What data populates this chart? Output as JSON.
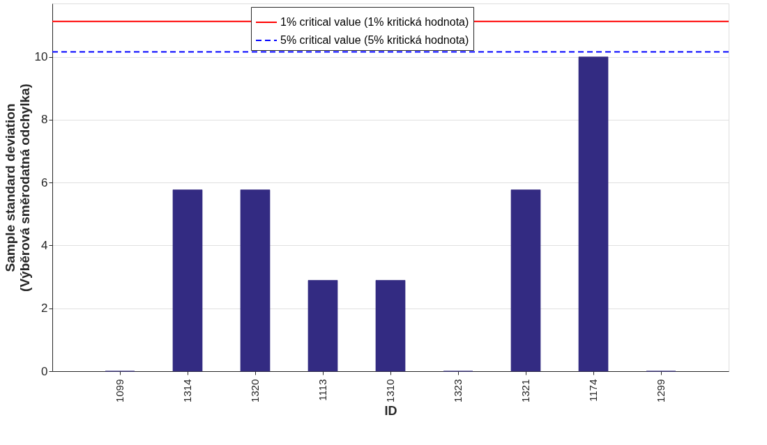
{
  "chart_data": {
    "type": "bar",
    "xlabel": "ID",
    "ylabel": "Sample standard deviation\n(Výběrová směrodatná odchylka)",
    "categories": [
      "1099",
      "1314",
      "1320",
      "1113",
      "1310",
      "1323",
      "1321",
      "1174",
      "1299"
    ],
    "values": [
      0,
      5.77,
      5.77,
      2.89,
      2.89,
      0,
      5.77,
      10,
      0
    ],
    "color": "#332b82",
    "ylim": [
      0,
      11.7
    ],
    "yticks": [
      0,
      2,
      4,
      6,
      8,
      10
    ],
    "grid": "y",
    "legend": "top",
    "ref_lines": [
      {
        "axis": "y",
        "value": 11.13,
        "label": "1% critical value (1% kritická hodnota)",
        "color": "#ff0000",
        "line_style": "solid"
      },
      {
        "axis": "y",
        "value": 10.16,
        "label": "5% critical value (5% kritická hodnota)",
        "color": "#0000ff",
        "line_style": "dashed"
      }
    ]
  }
}
